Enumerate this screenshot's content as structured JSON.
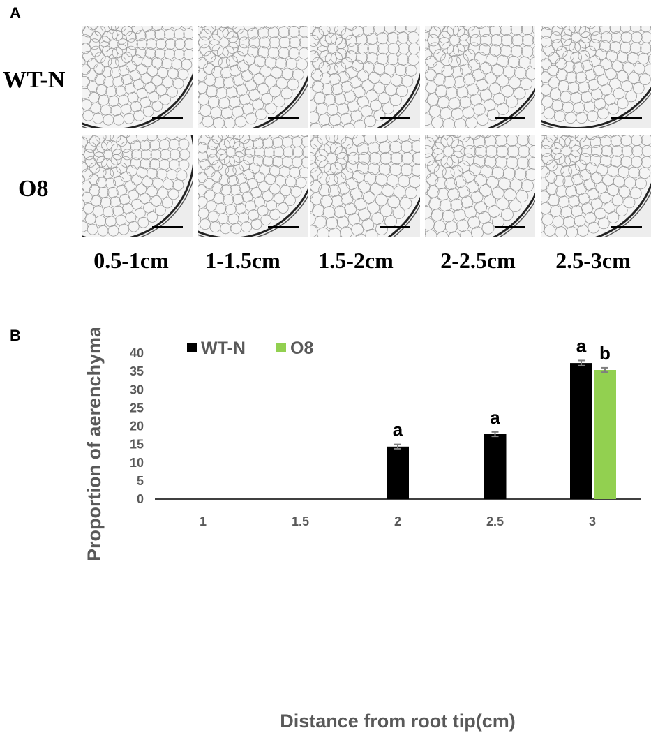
{
  "panel_a": {
    "letter": "A",
    "rows": [
      "WT-N",
      "O8"
    ],
    "columns": [
      "0.5-1cm",
      "1-1.5cm",
      "1.5-2cm",
      "2-2.5cm",
      "2.5-3cm"
    ]
  },
  "panel_b": {
    "letter": "B"
  },
  "colors": {
    "wt": "#000000",
    "o8": "#92d050",
    "axis_text": "#595959",
    "error_bar": "#7f7f7f"
  },
  "chart_data": {
    "type": "bar",
    "categories": [
      "1",
      "1.5",
      "2",
      "2.5",
      "3"
    ],
    "series": [
      {
        "name": "WT-N",
        "values": [
          0,
          0,
          14.4,
          17.8,
          37.3
        ],
        "errors": [
          0,
          0,
          0.6,
          0.6,
          0.7
        ],
        "labels": [
          "",
          "",
          "a",
          "a",
          "a"
        ]
      },
      {
        "name": "O8",
        "values": [
          0,
          0,
          0,
          0,
          35.4
        ],
        "errors": [
          0,
          0,
          0,
          0,
          0.6
        ],
        "labels": [
          "",
          "",
          "",
          "",
          "b"
        ]
      }
    ],
    "xlabel": "Distance from root tip(cm)",
    "ylabel": "Proportion of aerenchyma(%)",
    "ylim": [
      0,
      40
    ],
    "yticks": [
      0,
      5,
      10,
      15,
      20,
      25,
      30,
      35,
      40
    ],
    "legend": "top-left",
    "grid": false
  }
}
